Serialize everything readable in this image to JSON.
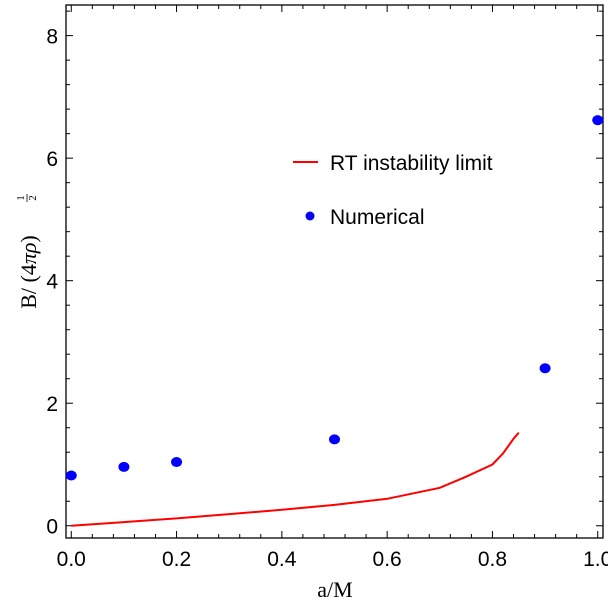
{
  "chart_data": {
    "type": "line",
    "xlabel": "a/M",
    "ylabel": {
      "main": "B/ (4",
      "pi": "π",
      "rho": "ρ",
      "close": ")",
      "exp_num": "1",
      "exp_den": "2"
    },
    "xlim": [
      -0.01,
      1.01
    ],
    "ylim": [
      -0.2,
      8.5
    ],
    "x_ticks": [
      0.0,
      0.2,
      0.4,
      0.6,
      0.8,
      1.0
    ],
    "x_tick_labels": [
      "0.0",
      "0.2",
      "0.4",
      "0.6",
      "0.8",
      "1.0"
    ],
    "y_ticks": [
      0,
      2,
      4,
      6,
      8
    ],
    "y_tick_labels": [
      "0",
      "2",
      "4",
      "6",
      "8"
    ],
    "grid": false,
    "legend_position": "upper-right",
    "series": [
      {
        "name": "RT instability limit",
        "kind": "line",
        "color": "#ff0000",
        "x": [
          0.0,
          0.1,
          0.2,
          0.3,
          0.4,
          0.5,
          0.6,
          0.7,
          0.75,
          0.8,
          0.82,
          0.84,
          0.85
        ],
        "y": [
          0.0,
          0.06,
          0.12,
          0.19,
          0.26,
          0.34,
          0.44,
          0.62,
          0.8,
          1.0,
          1.18,
          1.42,
          1.52
        ]
      },
      {
        "name": "Numerical",
        "kind": "scatter",
        "color": "#0000ff",
        "x": [
          0.0,
          0.1,
          0.2,
          0.5,
          0.9,
          1.0
        ],
        "y": [
          0.82,
          0.96,
          1.04,
          1.41,
          2.57,
          6.62
        ]
      }
    ]
  }
}
